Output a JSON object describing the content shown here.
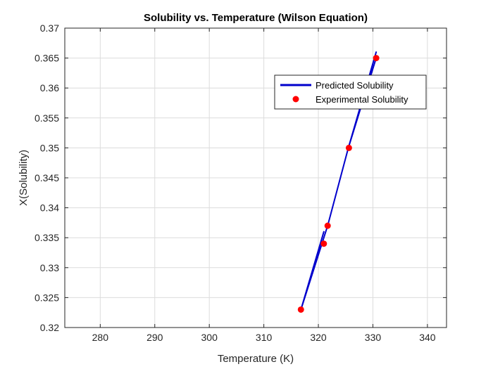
{
  "chart_data": {
    "type": "line",
    "title": "Solubility vs. Temperature (Wilson Equation)",
    "xlabel": "Temperature (K)",
    "ylabel": "X(Solubility)",
    "xlim": [
      273.5,
      343.5
    ],
    "ylim": [
      0.32,
      0.37
    ],
    "xticks": [
      280,
      290,
      300,
      310,
      320,
      330,
      340
    ],
    "yticks": [
      0.32,
      0.325,
      0.33,
      0.335,
      0.34,
      0.345,
      0.35,
      0.355,
      0.36,
      0.365,
      0.37
    ],
    "xtick_labels": [
      "280",
      "290",
      "300",
      "310",
      "320",
      "330",
      "340"
    ],
    "ytick_labels": [
      "0.32",
      "0.325",
      "0.33",
      "0.335",
      "0.34",
      "0.345",
      "0.35",
      "0.355",
      "0.36",
      "0.365",
      "0.37"
    ],
    "grid": true,
    "legend_position": "top-right",
    "series": [
      {
        "name": "Predicted Solubility",
        "kind": "line",
        "color": "#0000cc",
        "x": [
          316.8,
          321.0,
          316.8,
          321.7,
          325.5,
          330.6,
          325.5,
          330.6
        ],
        "y": [
          0.323,
          0.336,
          0.323,
          0.337,
          0.35,
          0.366,
          0.35,
          0.365
        ]
      },
      {
        "name": "Experimental Solubility",
        "kind": "scatter",
        "color": "#ff0000",
        "x": [
          316.8,
          321.0,
          321.7,
          325.6,
          330.6
        ],
        "y": [
          0.323,
          0.334,
          0.337,
          0.35,
          0.365
        ]
      }
    ]
  }
}
